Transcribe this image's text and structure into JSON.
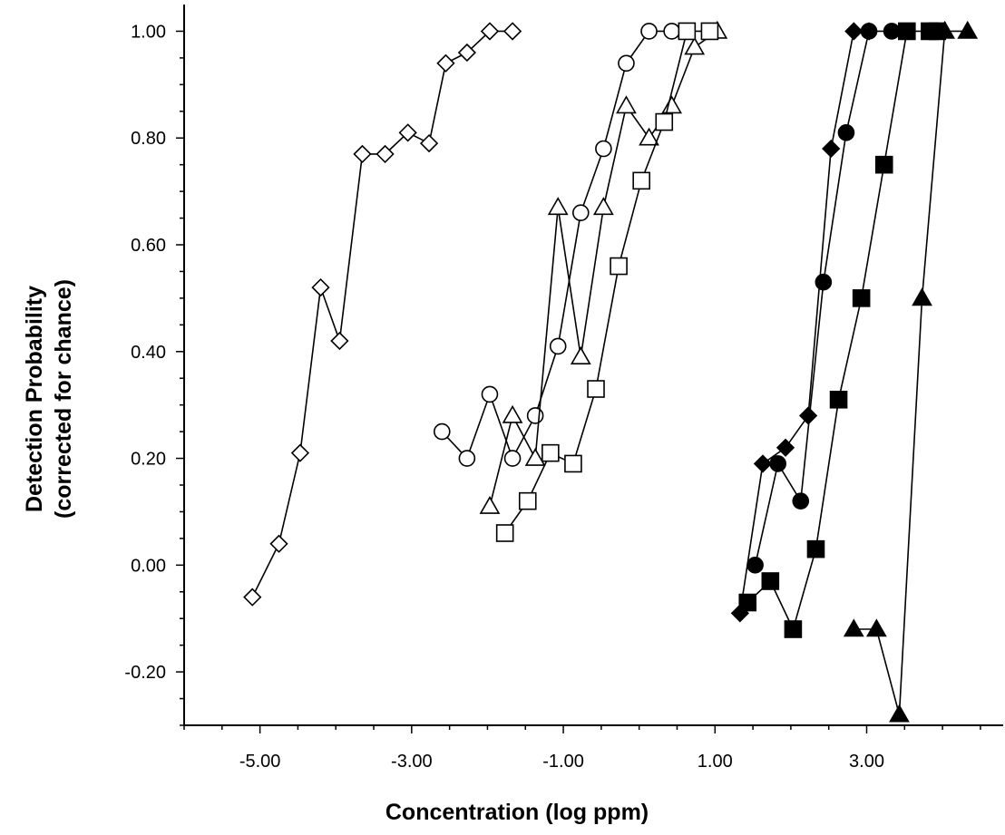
{
  "chart_data": {
    "type": "scatter",
    "title": "",
    "xlabel": "Concentration (log ppm)",
    "ylabel_line1": "Detection Probability",
    "ylabel_line2": "(corrected for chance)",
    "xlim": [
      -6.0,
      4.8
    ],
    "ylim": [
      -0.3,
      1.05
    ],
    "x_ticks": [
      -5,
      -3,
      -1,
      1,
      3
    ],
    "x_tick_labels": [
      "-5.00",
      "-3.00",
      "-1.00",
      "1.00",
      "3.00"
    ],
    "y_ticks": [
      -0.2,
      0,
      0.2,
      0.4,
      0.6,
      0.8,
      1.0
    ],
    "y_tick_labels": [
      "-0.20",
      "0.00",
      "0.20",
      "0.40",
      "0.60",
      "0.80",
      "1.00"
    ],
    "grid": false,
    "legend": "none",
    "series": [
      {
        "marker": "diamond-open",
        "x": [
          -5.1,
          -4.75,
          -4.47,
          -4.2,
          -3.95,
          -3.65,
          -3.35,
          -3.05,
          -2.77,
          -2.55,
          -2.27,
          -1.97,
          -1.67
        ],
        "y": [
          -0.06,
          0.04,
          0.21,
          0.52,
          0.42,
          0.77,
          0.77,
          0.81,
          0.79,
          0.94,
          0.96,
          1.0,
          1.0
        ]
      },
      {
        "marker": "circle-open",
        "x": [
          -2.6,
          -2.27,
          -1.97,
          -1.67,
          -1.37,
          -1.07,
          -0.77,
          -0.47,
          -0.17,
          0.13,
          0.43
        ],
        "y": [
          0.25,
          0.2,
          0.32,
          0.2,
          0.28,
          0.41,
          0.66,
          0.78,
          0.94,
          1.0,
          1.0
        ]
      },
      {
        "marker": "triangle-open",
        "x": [
          -1.97,
          -1.67,
          -1.37,
          -1.07,
          -0.77,
          -0.47,
          -0.17,
          0.13,
          0.43,
          0.73,
          1.03
        ],
        "y": [
          0.11,
          0.28,
          0.2,
          0.67,
          0.39,
          0.67,
          0.86,
          0.8,
          0.86,
          0.97,
          1.0
        ]
      },
      {
        "marker": "square-open",
        "x": [
          -1.77,
          -1.47,
          -1.17,
          -0.87,
          -0.57,
          -0.27,
          0.03,
          0.33,
          0.63,
          0.93
        ],
        "y": [
          0.06,
          0.12,
          0.21,
          0.19,
          0.33,
          0.56,
          0.72,
          0.83,
          1.0,
          1.0
        ]
      },
      {
        "marker": "diamond-filled",
        "x": [
          1.33,
          1.63,
          1.93,
          2.23,
          2.53,
          2.83,
          3.03
        ],
        "y": [
          -0.09,
          0.19,
          0.22,
          0.28,
          0.78,
          1.0,
          1.0
        ]
      },
      {
        "marker": "circle-filled",
        "x": [
          1.53,
          1.83,
          2.13,
          2.43,
          2.73,
          3.03,
          3.33
        ],
        "y": [
          0.0,
          0.19,
          0.12,
          0.53,
          0.81,
          1.0,
          1.0
        ]
      },
      {
        "marker": "square-filled",
        "x": [
          1.43,
          1.73,
          2.03,
          2.33,
          2.63,
          2.93,
          3.23,
          3.53,
          3.83,
          3.93
        ],
        "y": [
          -0.07,
          -0.03,
          -0.12,
          0.03,
          0.31,
          0.5,
          0.75,
          1.0,
          1.0,
          1.0
        ]
      },
      {
        "marker": "triangle-filled",
        "x": [
          2.83,
          3.13,
          3.43,
          3.73,
          4.03,
          4.33
        ],
        "y": [
          -0.12,
          -0.12,
          -0.28,
          0.5,
          1.0,
          1.0
        ]
      }
    ]
  }
}
